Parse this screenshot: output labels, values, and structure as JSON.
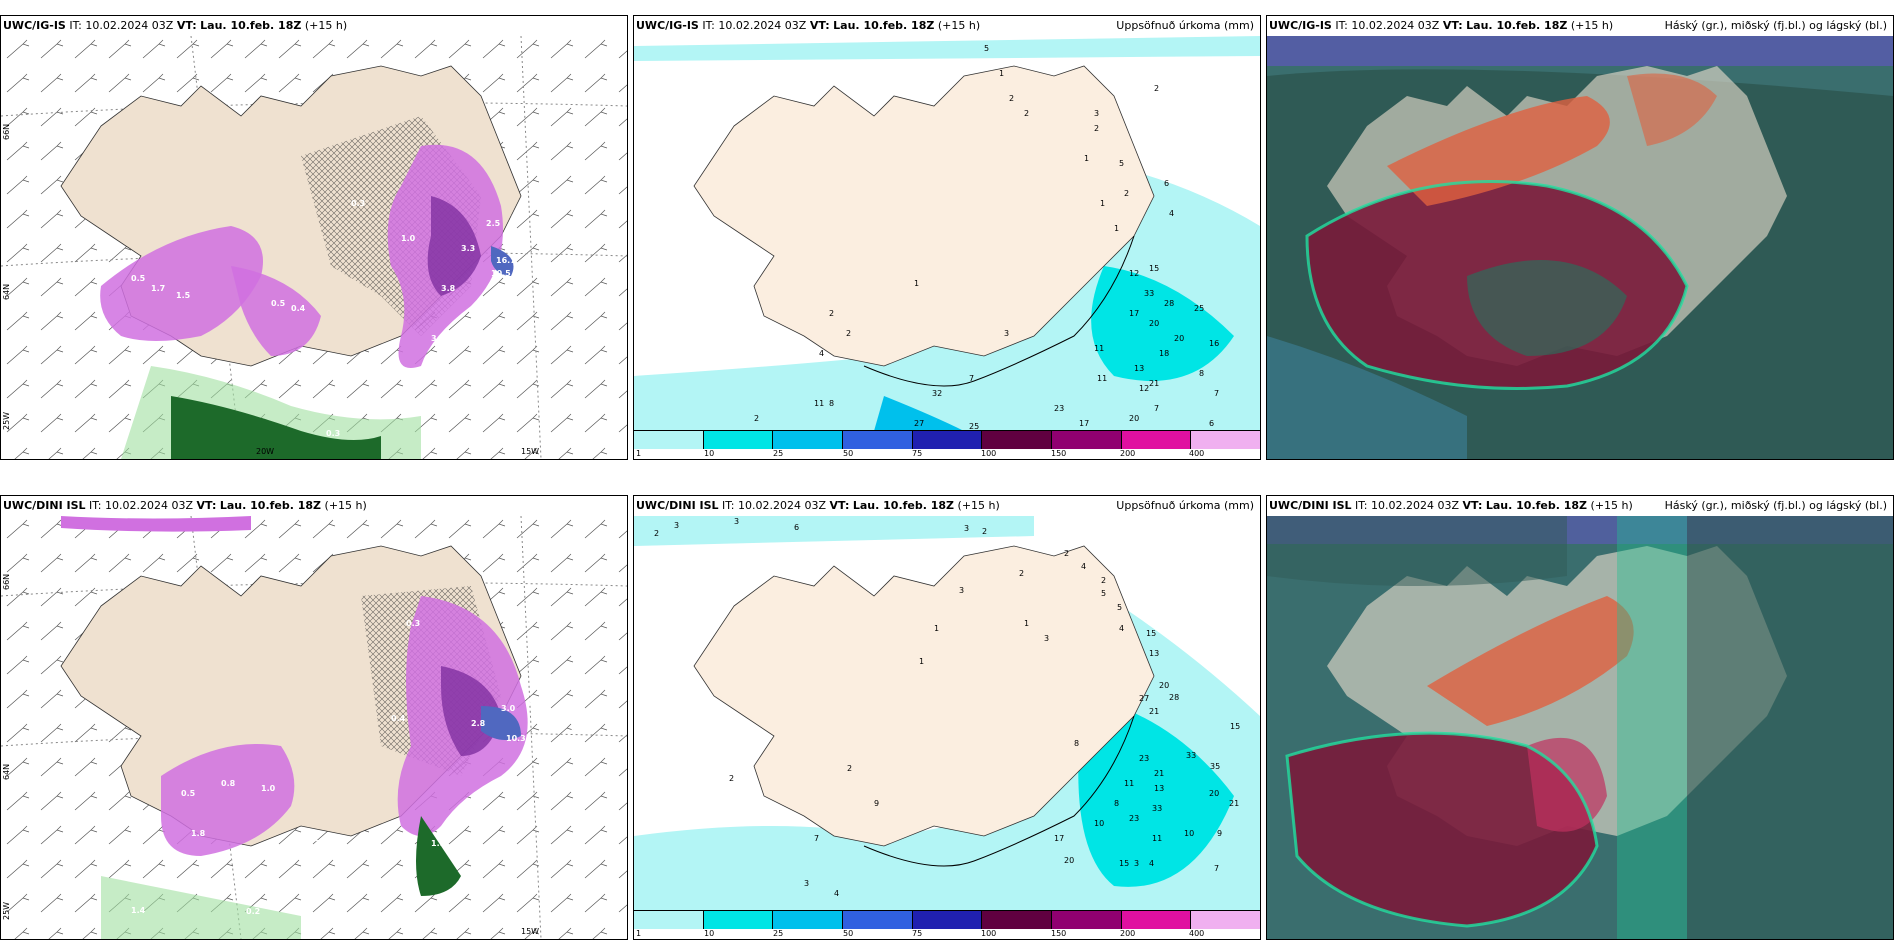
{
  "rows": [
    {
      "model": "UWC/IG-IS",
      "it_label": "IT:",
      "it": "10.02.2024 03Z",
      "vt_label": "VT:",
      "vt": "Lau. 10.feb. 18Z",
      "lead": "(+15 h)"
    },
    {
      "model": "UWC/DINI ISL",
      "it_label": "IT:",
      "it": "10.02.2024 03Z",
      "vt_label": "VT:",
      "vt": "Lau. 10.feb. 18Z",
      "lead": "(+15 h)"
    }
  ],
  "precip_title": "Uppsöfnuð úrkoma (mm)",
  "cloud_title": "Háský (gr.), miðský (fj.bl.) og lágský (bl.)",
  "lat_labels": [
    "66N",
    "64N",
    "25W"
  ],
  "lon_labels": [
    "20W",
    "15W"
  ],
  "colorbar": {
    "ticks": [
      "1",
      "10",
      "25",
      "50",
      "75",
      "100",
      "150",
      "200",
      "400"
    ],
    "colors": [
      "#b3f5f5",
      "#00e5e5",
      "#00c0ec",
      "#3060e0",
      "#2020b0",
      "#600040",
      "#900070",
      "#e010a0",
      "#f0b0f0"
    ]
  },
  "snow_values_top": [
    "0.5",
    "1.7",
    "1.5",
    "0.3",
    "0.5",
    "0.4",
    "1.0",
    "3.3",
    "2.5",
    "2.6",
    "16.7",
    "10.5",
    "3.8",
    "3.5",
    "1.5",
    "0.5",
    "0.3",
    "0.3"
  ],
  "snow_values_bottom": [
    "0.5",
    "1.8",
    "0.8",
    "1.0",
    "0.3",
    "0.4",
    "2.8",
    "3.0",
    "3.7",
    "10.3",
    "1.3",
    "0.5",
    "1.9",
    "0.8",
    "0.2",
    "1.4",
    "0.3"
  ],
  "precip_values_top": [
    "5",
    "1",
    "2",
    "2",
    "3",
    "1",
    "2",
    "2",
    "1",
    "5",
    "6",
    "4",
    "2",
    "1",
    "12",
    "15",
    "33",
    "28",
    "25",
    "20",
    "17",
    "20",
    "16",
    "18",
    "13",
    "21",
    "12",
    "11",
    "11",
    "8",
    "7",
    "7",
    "6",
    "23",
    "20",
    "17",
    "27",
    "25",
    "32",
    "11",
    "8",
    "2",
    "4",
    "2",
    "2",
    "7",
    "3",
    "1"
  ],
  "precip_values_bottom": [
    "2",
    "3",
    "3",
    "6",
    "3",
    "2",
    "2",
    "1",
    "1",
    "2",
    "3",
    "4",
    "2",
    "5",
    "5",
    "3",
    "4",
    "13",
    "15",
    "20",
    "28",
    "27",
    "21",
    "33",
    "35",
    "15",
    "23",
    "21",
    "20",
    "21",
    "33",
    "13",
    "10",
    "9",
    "8",
    "11",
    "23",
    "10",
    "17",
    "11",
    "20",
    "15",
    "3",
    "4",
    "7",
    "9",
    "2",
    "8",
    "2",
    "7",
    "3",
    "4",
    "1"
  ]
}
